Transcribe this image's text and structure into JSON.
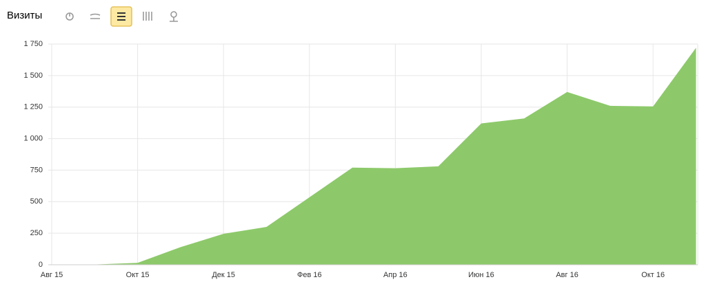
{
  "chart_data": {
    "type": "area",
    "title": "Визиты",
    "categories": [
      "Авг 15",
      null,
      "Окт 15",
      null,
      "Дек 15",
      null,
      "Фев 16",
      null,
      "Апр 16",
      null,
      "Июн 16",
      null,
      "Авг 16",
      null,
      "Окт 16",
      null
    ],
    "values": [
      0,
      2,
      15,
      140,
      245,
      300,
      535,
      770,
      765,
      780,
      1120,
      1160,
      1370,
      1260,
      1255,
      1720
    ],
    "color": "#8dc96a",
    "ylim": [
      0,
      1750
    ],
    "yticks": [
      0,
      250,
      500,
      750,
      {
        "value": 1000,
        "label": "1 000"
      },
      {
        "value": 1250,
        "label": "1 250"
      },
      {
        "value": 1500,
        "label": "1 500"
      },
      {
        "value": 1750,
        "label": "1 750"
      }
    ],
    "grid": true
  }
}
